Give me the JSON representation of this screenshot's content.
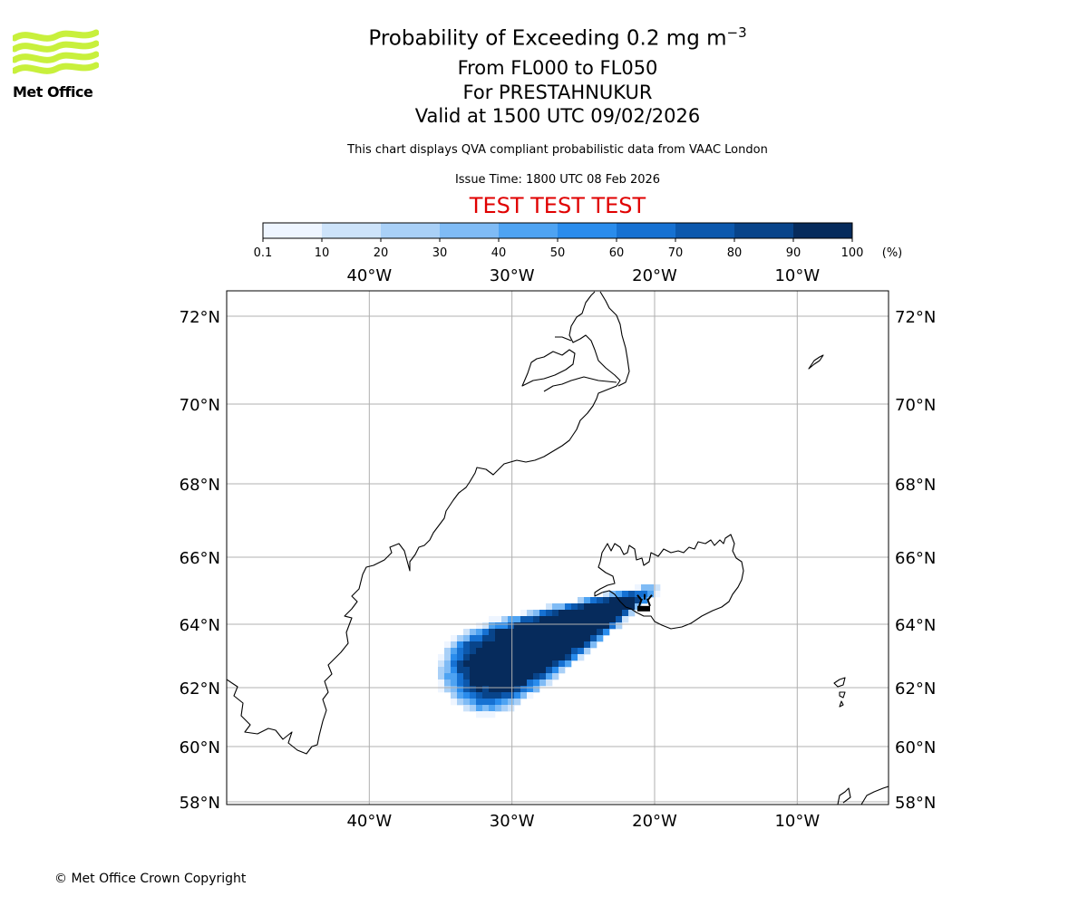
{
  "header": {
    "title_main": "Probability of Exceeding 0.2 mg m",
    "title_superscript": "−3",
    "level_range": "From FL000 to FL050",
    "volcano": "For PRESTAHNUKUR",
    "valid_time": "Valid at 1500 UTC 09/02/2026",
    "description": "This chart displays QVA compliant probabilistic data from VAAC London",
    "issue_time": "Issue Time: 1800 UTC 08 Feb 2026",
    "test_banner": "TEST TEST TEST"
  },
  "logo": {
    "text": "Met Office",
    "color": "#c8f03c"
  },
  "footer": {
    "copyright": "© Met Office Crown Copyright"
  },
  "colorbar": {
    "ticks": [
      "0.1",
      "10",
      "20",
      "30",
      "40",
      "50",
      "60",
      "70",
      "80",
      "90",
      "100"
    ],
    "unit": "(%)",
    "colors": [
      "#eef5ff",
      "#cde3fa",
      "#a9d0f7",
      "#7fbbf5",
      "#4ea3f2",
      "#2a8cec",
      "#1671d2",
      "#0c58ad",
      "#08448a",
      "#062b5c"
    ]
  },
  "map": {
    "lon_labels": [
      "40°W",
      "30°W",
      "20°W",
      "10°W"
    ],
    "lon_values": [
      -40,
      -30,
      -20,
      -10
    ],
    "lat_labels": [
      "72°N",
      "70°N",
      "68°N",
      "66°N",
      "64°N",
      "62°N",
      "60°N",
      "58°N"
    ],
    "lat_values": [
      72,
      70,
      68,
      66,
      64,
      62,
      60,
      58
    ],
    "extent": {
      "lon_min": -50,
      "lon_max": -3.6,
      "lat_min": 58,
      "lat_max": 72.6
    },
    "volcano_location": {
      "lon": -20.7,
      "lat": 64.6
    },
    "plume": {
      "axis_start": {
        "lon": -21.2,
        "lat": 64.8
      },
      "axis_end": {
        "lon": -33.0,
        "lat": 62.1
      },
      "peak_probability": 100
    }
  }
}
